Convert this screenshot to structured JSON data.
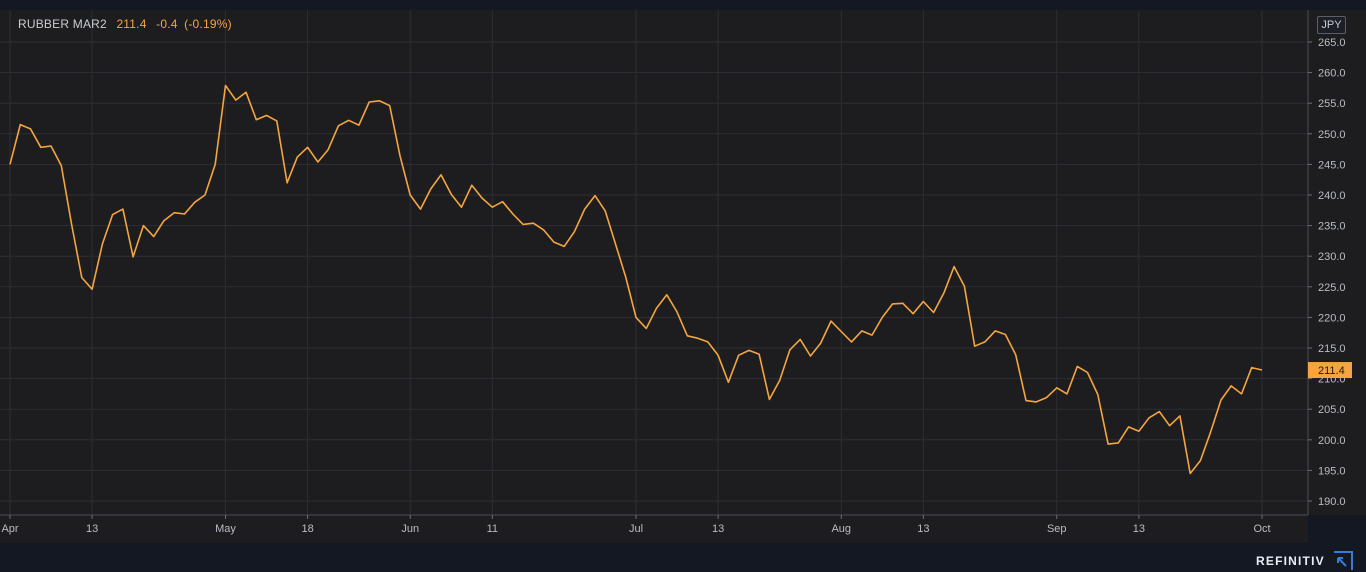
{
  "chart_data": {
    "type": "line",
    "instrument": "RUBBER MAR2",
    "last_value": "211.4",
    "change": "-0.4",
    "change_pct": "(-0.19%)",
    "currency": "JPY",
    "last_price_label": "211.4",
    "y_ticks": [
      "265.0",
      "260.0",
      "255.0",
      "250.0",
      "245.0",
      "240.0",
      "235.0",
      "230.0",
      "225.0",
      "220.0",
      "215.0",
      "210.0",
      "205.0",
      "200.0",
      "195.0",
      "190.0"
    ],
    "ylim": [
      188,
      267.2
    ],
    "x_ticks": [
      {
        "label": "Apr",
        "i": 0
      },
      {
        "label": "13",
        "i": 8
      },
      {
        "label": "May",
        "i": 21
      },
      {
        "label": "18",
        "i": 29
      },
      {
        "label": "Jun",
        "i": 39
      },
      {
        "label": "11",
        "i": 47
      },
      {
        "label": "Jul",
        "i": 61
      },
      {
        "label": "13",
        "i": 69
      },
      {
        "label": "Aug",
        "i": 81
      },
      {
        "label": "13",
        "i": 89
      },
      {
        "label": "Sep",
        "i": 102
      },
      {
        "label": "13",
        "i": 110
      },
      {
        "label": "Oct",
        "i": 122
      }
    ],
    "grid": true,
    "line_color": "#f4a540",
    "values": [
      245.0,
      251.5,
      250.8,
      247.8,
      248.0,
      244.8,
      235.2,
      226.5,
      224.6,
      232.0,
      236.8,
      237.7,
      229.9,
      235.0,
      233.2,
      235.8,
      237.1,
      236.9,
      238.8,
      240.0,
      245.0,
      257.9,
      255.5,
      256.8,
      252.3,
      253.0,
      252.1,
      242.0,
      246.2,
      247.8,
      245.4,
      247.4,
      251.3,
      252.2,
      251.4,
      255.2,
      255.4,
      254.6,
      246.4,
      240.0,
      237.7,
      241.0,
      243.3,
      240.1,
      238.0,
      241.6,
      239.5,
      238.0,
      238.9,
      236.9,
      235.2,
      235.4,
      234.3,
      232.3,
      231.6,
      234.0,
      237.7,
      239.9,
      237.4,
      232.0,
      226.6,
      220.0,
      218.2,
      221.5,
      223.7,
      220.9,
      217.0,
      216.6,
      216.0,
      213.8,
      209.4,
      213.8,
      214.6,
      214.0,
      206.6,
      209.7,
      214.7,
      216.4,
      213.7,
      215.8,
      219.4,
      217.7,
      216.0,
      217.8,
      217.1,
      220.0,
      222.2,
      222.3,
      220.6,
      222.6,
      220.8,
      224.0,
      228.3,
      225.1,
      215.3,
      216.0,
      217.8,
      217.2,
      213.9,
      206.4,
      206.2,
      206.9,
      208.5,
      207.5,
      212.0,
      211.0,
      207.4,
      199.3,
      199.5,
      202.1,
      201.4,
      203.6,
      204.6,
      202.3,
      203.9,
      194.5,
      196.6,
      201.3,
      206.5,
      208.8,
      207.5,
      211.8,
      211.4
    ],
    "brand": "REFINITIV"
  }
}
